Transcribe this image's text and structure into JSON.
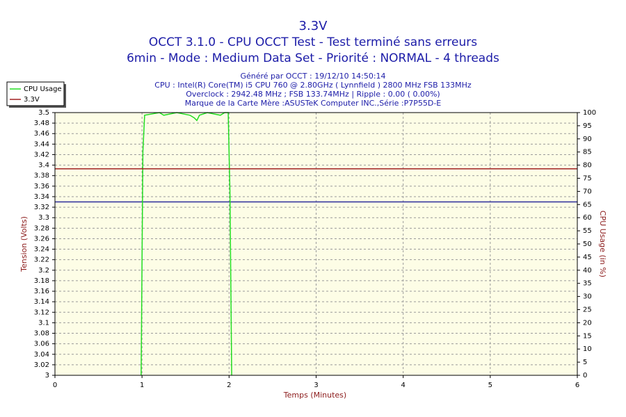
{
  "chart_data": {
    "type": "line",
    "title": "3.3V",
    "subtitle": [
      "OCCT 3.1.0 - CPU OCCT Test - Test terminé sans erreurs",
      "6min - Mode : Medium Data Set - Priorité : NORMAL - 4 threads"
    ],
    "info": [
      "Généré par OCCT : 19/12/10 14:50:14",
      "CPU : Intel(R) Core(TM) i5 CPU 760 @ 2.80GHz ( Lynnfield ) 2800 MHz FSB 133MHz",
      "Overclock : 2942.48 MHz ; FSB 133.74MHz | Ripple : 0.00 ( 0.00%)",
      "Marque de la Carte Mère :ASUSTeK Computer INC.,Série :P7P55D-E"
    ],
    "xlabel": "Temps (Minutes)",
    "ylabel": "Tension (Volts)",
    "y2label": "CPU Usage (in %)",
    "xlim": [
      0,
      6
    ],
    "xticks": [
      0,
      1,
      2,
      3,
      4,
      5,
      6
    ],
    "ylim": [
      3,
      3.5
    ],
    "yticks": [
      3,
      3.02,
      3.04,
      3.06,
      3.08,
      3.1,
      3.12,
      3.14,
      3.16,
      3.18,
      3.2,
      3.22,
      3.24,
      3.26,
      3.28,
      3.3,
      3.32,
      3.34,
      3.36,
      3.38,
      3.4,
      3.42,
      3.44,
      3.46,
      3.48,
      3.5
    ],
    "y2lim": [
      0,
      100
    ],
    "y2ticks": [
      0,
      5,
      10,
      15,
      20,
      25,
      30,
      35,
      40,
      45,
      50,
      55,
      60,
      65,
      70,
      75,
      80,
      85,
      90,
      95,
      100
    ],
    "grid": true,
    "legend": "upper left",
    "reference_line": {
      "value": 3.33,
      "color": "#2a2a9a"
    },
    "series": [
      {
        "name": "CPU Usage",
        "color": "#22dd22",
        "axis": "y2",
        "x": [
          0.99,
          1.01,
          1.03,
          1.2,
          1.25,
          1.4,
          1.55,
          1.6,
          1.63,
          1.66,
          1.75,
          1.9,
          1.95,
          1.99,
          2.01,
          2.03
        ],
        "values": [
          0,
          85,
          99,
          100,
          99,
          100,
          99,
          98,
          97,
          99,
          100,
          99,
          100,
          100,
          70,
          0
        ]
      },
      {
        "name": "3.3V",
        "color": "#a02020",
        "x": [
          0,
          6
        ],
        "values": [
          3.393,
          3.393
        ]
      }
    ]
  }
}
